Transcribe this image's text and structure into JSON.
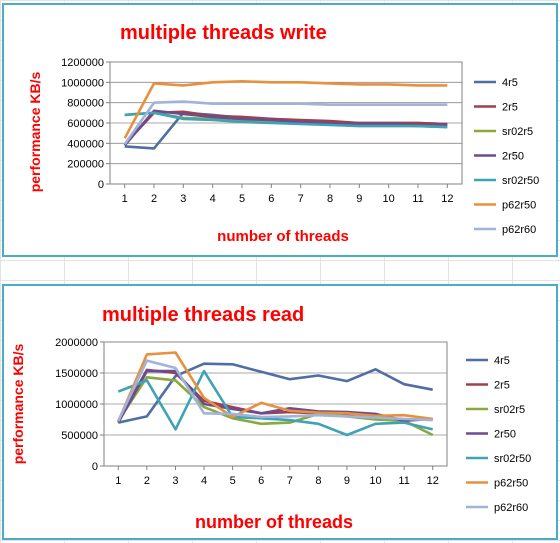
{
  "charts": [
    {
      "id": "write",
      "title": "multiple threads write",
      "chart_data": {
        "type": "line",
        "title": "multiple threads write",
        "xlabel": "number of threads",
        "ylabel": "performance KB/s",
        "x": [
          1,
          2,
          3,
          4,
          5,
          6,
          7,
          8,
          9,
          10,
          11,
          12
        ],
        "ylim": [
          0,
          1200000
        ],
        "yticks": [
          0,
          200000,
          400000,
          600000,
          800000,
          1000000,
          1200000
        ],
        "ytick_labels": [
          "0",
          "200000",
          "400000",
          "600000",
          "800000",
          "1000000",
          "1200000"
        ],
        "grid": true,
        "legend": "right",
        "series": [
          {
            "name": "4r5",
            "color": "#4f6fa3",
            "values": [
              370000,
              350000,
              700000,
              680000,
              650000,
              640000,
              620000,
              610000,
              600000,
              600000,
              600000,
              590000
            ]
          },
          {
            "name": "2r5",
            "color": "#a0404a",
            "values": [
              390000,
              700000,
              710000,
              670000,
              660000,
              640000,
              630000,
              620000,
              600000,
              600000,
              600000,
              590000
            ]
          },
          {
            "name": "sr02r5",
            "color": "#8aa83c",
            "values": [
              680000,
              700000,
              650000,
              640000,
              620000,
              610000,
              600000,
              590000,
              580000,
              580000,
              570000,
              560000
            ]
          },
          {
            "name": "2r50",
            "color": "#6b4c91",
            "values": [
              380000,
              720000,
              690000,
              660000,
              640000,
              630000,
              610000,
              600000,
              590000,
              590000,
              580000,
              580000
            ]
          },
          {
            "name": "sr02r50",
            "color": "#3ea3b5",
            "values": [
              680000,
              700000,
              640000,
              630000,
              610000,
              600000,
              590000,
              580000,
              570000,
              570000,
              570000,
              560000
            ]
          },
          {
            "name": "p62r50",
            "color": "#e8913d",
            "values": [
              450000,
              990000,
              970000,
              1000000,
              1010000,
              1000000,
              1000000,
              990000,
              980000,
              980000,
              970000,
              970000
            ]
          },
          {
            "name": "p62r60",
            "color": "#9fb4d8",
            "values": [
              390000,
              800000,
              810000,
              790000,
              790000,
              790000,
              790000,
              780000,
              780000,
              780000,
              780000,
              780000
            ]
          }
        ]
      }
    },
    {
      "id": "read",
      "title": "multiple threads read",
      "chart_data": {
        "type": "line",
        "title": "multiple threads read",
        "xlabel": "number of threads",
        "ylabel": "performance KB/s",
        "x": [
          1,
          2,
          3,
          4,
          5,
          6,
          7,
          8,
          9,
          10,
          11,
          12
        ],
        "ylim": [
          0,
          2000000
        ],
        "yticks": [
          0,
          500000,
          1000000,
          1500000,
          2000000
        ],
        "ytick_labels": [
          "0",
          "500000",
          "1000000",
          "1500000",
          "2000000"
        ],
        "grid": true,
        "legend": "right",
        "series": [
          {
            "name": "4r5",
            "color": "#4f6fa3",
            "values": [
              700000,
              800000,
              1450000,
              1650000,
              1640000,
              1520000,
              1400000,
              1460000,
              1370000,
              1560000,
              1320000,
              1230000
            ]
          },
          {
            "name": "2r5",
            "color": "#a0404a",
            "values": [
              720000,
              1550000,
              1500000,
              1050000,
              950000,
              850000,
              870000,
              850000,
              830000,
              800000,
              750000,
              750000
            ]
          },
          {
            "name": "sr02r5",
            "color": "#8aa83c",
            "values": [
              730000,
              1430000,
              1380000,
              950000,
              770000,
              680000,
              700000,
              840000,
              800000,
              750000,
              730000,
              500000
            ]
          },
          {
            "name": "2r50",
            "color": "#6b4c91",
            "values": [
              700000,
              1530000,
              1530000,
              1000000,
              920000,
              850000,
              930000,
              880000,
              870000,
              840000,
              730000,
              760000
            ]
          },
          {
            "name": "sr02r50",
            "color": "#3ea3b5",
            "values": [
              1200000,
              1380000,
              590000,
              1530000,
              790000,
              770000,
              740000,
              680000,
              500000,
              680000,
              700000,
              590000
            ]
          },
          {
            "name": "p62r50",
            "color": "#e8913d",
            "values": [
              720000,
              1800000,
              1830000,
              1100000,
              790000,
              1020000,
              890000,
              860000,
              850000,
              810000,
              820000,
              760000
            ]
          },
          {
            "name": "p62r60",
            "color": "#9fb4d8",
            "values": [
              730000,
              1700000,
              1580000,
              850000,
              840000,
              790000,
              800000,
              820000,
              800000,
              780000,
              760000,
              740000
            ]
          }
        ]
      }
    }
  ]
}
